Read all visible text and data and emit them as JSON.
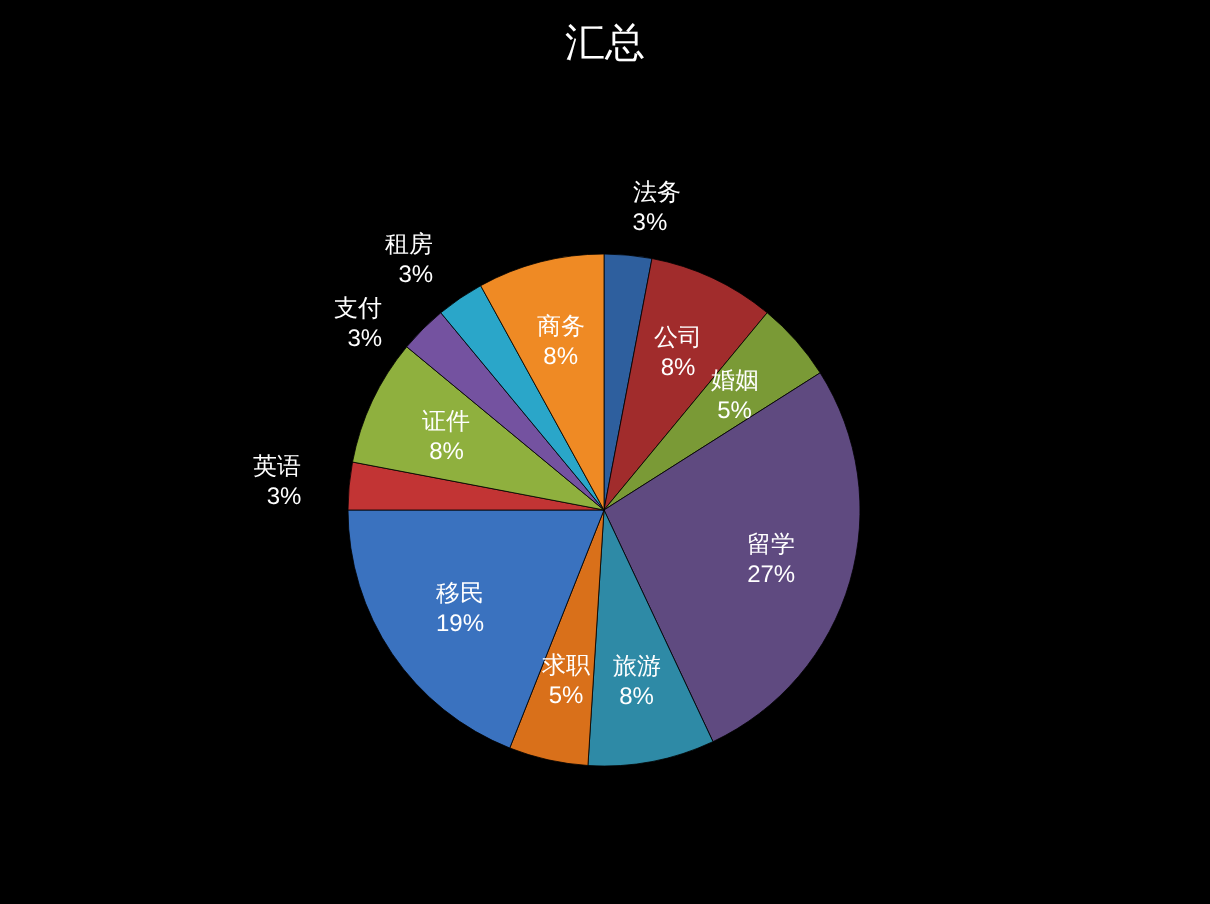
{
  "chart_data": {
    "type": "pie",
    "title": "汇总",
    "categories": [
      "法务",
      "公司",
      "婚姻",
      "留学",
      "旅游",
      "求职",
      "移民",
      "英语",
      "证件",
      "支付",
      "租房",
      "商务"
    ],
    "values": [
      3,
      8,
      5,
      27,
      8,
      5,
      19,
      3,
      8,
      3,
      3,
      8
    ],
    "colors": [
      "#2e5f9e",
      "#a12c2c",
      "#7a9a36",
      "#5f4a80",
      "#2e8aa6",
      "#d9701a",
      "#3a72bf",
      "#c23434",
      "#8fb03e",
      "#7452a0",
      "#2aa6c9",
      "#ef8a24"
    ],
    "value_labels": [
      "3%",
      "8%",
      "5%",
      "27%",
      "8%",
      "5%",
      "19%",
      "3%",
      "8%",
      "3%",
      "3%",
      "8%"
    ]
  }
}
